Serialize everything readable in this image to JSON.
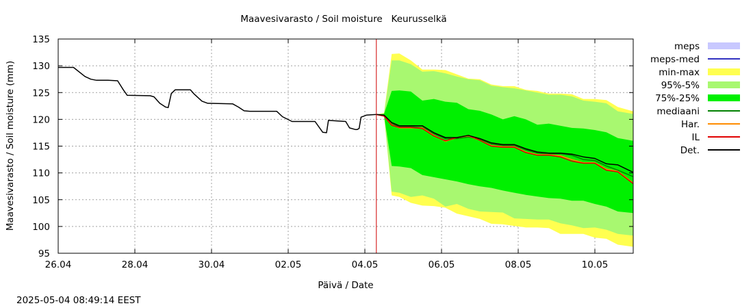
{
  "chart_data": {
    "type": "line",
    "title": "Maavesivarasto / Soil moisture   Keurusselkä",
    "xlabel": "Päivä / Date",
    "ylabel": "Maavesivarasto / Soil moisture (mm)",
    "timestamp": "2025-05-04 08:49:14 EEST",
    "x_unit": "days since 26.04",
    "xlim": [
      0,
      15
    ],
    "ylim": [
      95,
      135
    ],
    "x_ticks": [
      {
        "value": 0,
        "label": "26.04"
      },
      {
        "value": 2,
        "label": "28.04"
      },
      {
        "value": 4,
        "label": "30.04"
      },
      {
        "value": 6,
        "label": "02.05"
      },
      {
        "value": 8,
        "label": "04.05"
      },
      {
        "value": 10,
        "label": "06.05"
      },
      {
        "value": 12,
        "label": "08.05"
      },
      {
        "value": 14,
        "label": "10.05"
      }
    ],
    "y_ticks": [
      95,
      100,
      105,
      110,
      115,
      120,
      125,
      130,
      135
    ],
    "grid": true,
    "legend_position": "right",
    "forecast_start": 8.3,
    "colors": {
      "meps": "#c8c8ff",
      "meps_med": "#3030c0",
      "min_max": "#ffff50",
      "p95_5": "#a8f870",
      "p75_25": "#00f000",
      "mediaani": "#008000",
      "har": "#ff8c00",
      "il": "#e00000",
      "det": "#000000",
      "forecast_line": "#d00000"
    },
    "legend": [
      {
        "label": "meps",
        "kind": "band",
        "color_key": "meps"
      },
      {
        "label": "meps-med",
        "kind": "line",
        "color_key": "meps_med"
      },
      {
        "label": "min-max",
        "kind": "band",
        "color_key": "min_max"
      },
      {
        "label": "95%-5%",
        "kind": "band",
        "color_key": "p95_5"
      },
      {
        "label": "75%-25%",
        "kind": "band",
        "color_key": "p75_25"
      },
      {
        "label": "mediaani",
        "kind": "line",
        "color_key": "mediaani"
      },
      {
        "label": "Har.",
        "kind": "line",
        "color_key": "har"
      },
      {
        "label": "IL",
        "kind": "line",
        "color_key": "il"
      },
      {
        "label": "Det.",
        "kind": "line",
        "color_key": "det"
      }
    ],
    "observed": {
      "name": "Det.",
      "x": [
        0,
        0.4,
        0.7,
        0.85,
        1.0,
        1.3,
        1.55,
        1.7,
        1.8,
        2.4,
        2.5,
        2.65,
        2.8,
        2.87,
        2.95,
        3.05,
        3.45,
        3.55,
        3.75,
        3.9,
        4.55,
        4.7,
        4.85,
        5.0,
        5.7,
        5.85,
        6.1,
        6.7,
        6.9,
        7.0,
        7.05,
        7.5,
        7.6,
        7.75,
        7.8,
        7.85,
        7.9,
        8.05,
        8.3
      ],
      "y": [
        129.7,
        129.7,
        128.0,
        127.5,
        127.3,
        127.3,
        127.2,
        125.5,
        124.5,
        124.4,
        124.2,
        123.0,
        122.3,
        122.2,
        124.8,
        125.5,
        125.5,
        124.7,
        123.4,
        123.0,
        122.9,
        122.3,
        121.6,
        121.5,
        121.5,
        120.5,
        119.6,
        119.6,
        117.6,
        117.5,
        119.8,
        119.6,
        118.4,
        118.1,
        118.1,
        118.3,
        120.4,
        120.8,
        120.9
      ]
    },
    "forecast_x": [
      8.3,
      8.5,
      8.7,
      8.9,
      9.2,
      9.5,
      9.8,
      10.1,
      10.4,
      10.7,
      11.0,
      11.3,
      11.6,
      11.9,
      12.2,
      12.5,
      12.8,
      13.1,
      13.4,
      13.7,
      14.0,
      14.3,
      14.6,
      15.0
    ],
    "bands": {
      "min_max": {
        "upper": [
          120.9,
          121.2,
          132.2,
          132.3,
          131.0,
          129.3,
          129.3,
          129.2,
          128.4,
          127.6,
          127.5,
          126.5,
          126.2,
          126.2,
          125.5,
          125.3,
          124.8,
          124.8,
          124.7,
          123.8,
          123.8,
          123.6,
          122.3,
          121.5
        ],
        "lower": [
          120.9,
          120.7,
          105.8,
          105.5,
          104.4,
          103.9,
          103.8,
          103.5,
          102.4,
          101.9,
          101.4,
          100.5,
          100.4,
          100.1,
          99.8,
          99.8,
          99.7,
          98.6,
          98.6,
          98.6,
          97.9,
          97.7,
          96.6,
          96.2
        ]
      },
      "p95_5": {
        "upper": [
          120.9,
          121.1,
          131.0,
          131.0,
          130.3,
          128.9,
          129.0,
          128.6,
          128.0,
          127.5,
          127.3,
          126.3,
          126.0,
          125.8,
          125.4,
          125.0,
          124.6,
          124.6,
          124.3,
          123.5,
          123.3,
          123.0,
          121.5,
          121.0
        ],
        "lower": [
          120.9,
          120.7,
          106.5,
          106.3,
          105.5,
          105.8,
          105.2,
          103.7,
          104.2,
          103.3,
          102.8,
          102.7,
          102.6,
          101.5,
          101.4,
          101.3,
          101.3,
          100.6,
          100.2,
          99.7,
          99.8,
          99.4,
          98.6,
          98.3
        ]
      },
      "p75_25": {
        "upper": [
          120.9,
          121.0,
          125.3,
          125.4,
          125.2,
          123.5,
          123.8,
          123.3,
          123.1,
          121.9,
          121.6,
          120.9,
          120.0,
          120.6,
          120.0,
          119.0,
          119.2,
          118.8,
          118.4,
          118.3,
          118.0,
          117.6,
          116.5,
          116.0
        ],
        "lower": [
          120.9,
          120.7,
          111.3,
          111.2,
          110.9,
          109.6,
          109.2,
          108.8,
          108.4,
          107.9,
          107.5,
          107.2,
          106.7,
          106.3,
          105.9,
          105.6,
          105.3,
          105.2,
          104.8,
          104.8,
          104.2,
          103.7,
          102.8,
          102.5
        ]
      }
    },
    "series": [
      {
        "name": "mediaani",
        "color_key": "mediaani",
        "y": [
          120.9,
          120.7,
          119.2,
          118.6,
          118.6,
          118.5,
          117.3,
          116.4,
          116.4,
          116.7,
          116.3,
          115.4,
          115.1,
          115.1,
          114.3,
          113.7,
          113.5,
          113.6,
          113.3,
          112.5,
          112.3,
          111.3,
          110.5,
          109.3
        ]
      },
      {
        "name": "Har.",
        "color_key": "har",
        "y": [
          120.9,
          120.6,
          119.0,
          118.4,
          118.4,
          118.4,
          117.0,
          115.9,
          116.6,
          116.9,
          116.1,
          115.1,
          114.9,
          114.9,
          113.9,
          113.4,
          113.4,
          113.2,
          112.5,
          111.9,
          111.9,
          110.7,
          110.3,
          108.1
        ]
      },
      {
        "name": "IL",
        "color_key": "il",
        "y": [
          120.9,
          120.6,
          118.9,
          118.5,
          118.5,
          118.3,
          116.9,
          116.0,
          116.6,
          117.0,
          116.1,
          115.0,
          114.8,
          114.8,
          113.8,
          113.3,
          113.3,
          113.0,
          112.2,
          111.8,
          111.8,
          110.5,
          110.2,
          108.0
        ]
      },
      {
        "name": "Det.",
        "color_key": "det",
        "y": [
          120.9,
          120.8,
          119.4,
          118.8,
          118.8,
          118.8,
          117.5,
          116.6,
          116.6,
          117.0,
          116.4,
          115.6,
          115.3,
          115.3,
          114.5,
          113.9,
          113.7,
          113.7,
          113.5,
          113.0,
          112.7,
          111.7,
          111.5,
          110.1
        ]
      }
    ]
  }
}
